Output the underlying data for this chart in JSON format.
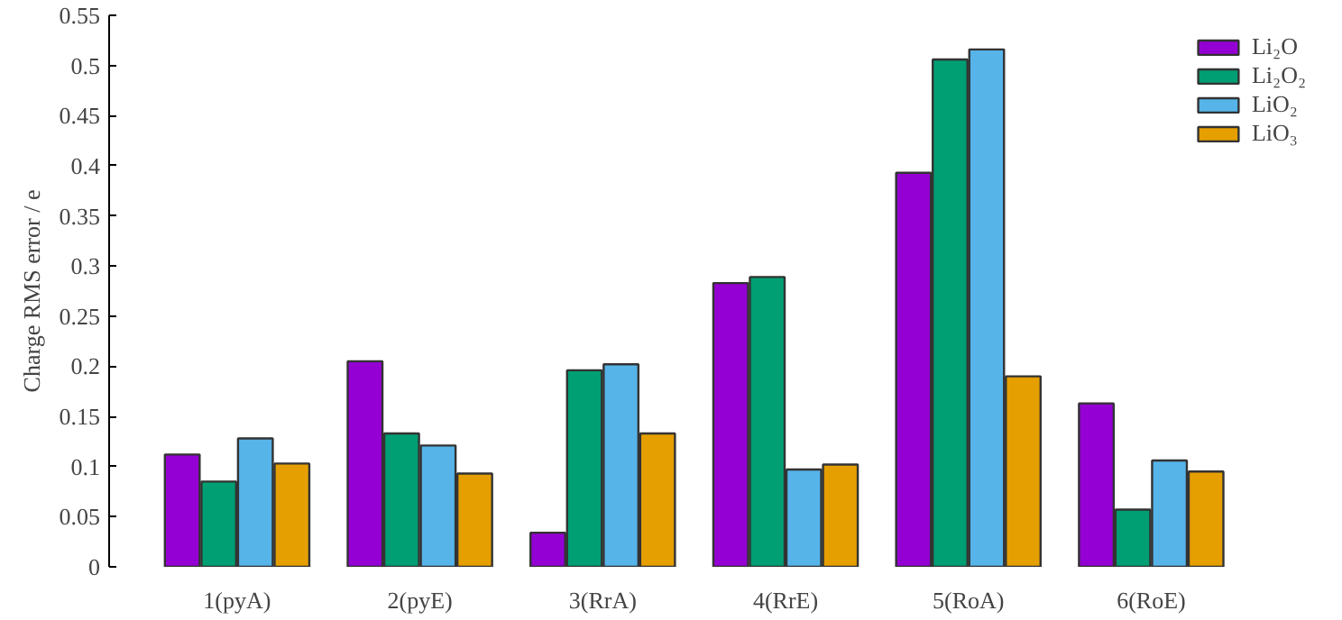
{
  "chart_data": {
    "type": "bar",
    "ylabel": "Charge RMS error / e",
    "categories": [
      "1(pyA)",
      "2(pyE)",
      "3(RrA)",
      "4(RrE)",
      "5(RoA)",
      "6(RoE)"
    ],
    "series": [
      {
        "name": "Li₂O",
        "color": "#9400d3",
        "values": [
          0.112,
          0.205,
          0.034,
          0.283,
          0.393,
          0.163
        ]
      },
      {
        "name": "Li₂O₂",
        "color": "#009e73",
        "values": [
          0.085,
          0.133,
          0.196,
          0.289,
          0.506,
          0.057
        ]
      },
      {
        "name": "LiO₂",
        "color": "#56b4e9",
        "values": [
          0.128,
          0.121,
          0.202,
          0.097,
          0.516,
          0.106
        ]
      },
      {
        "name": "LiO₃",
        "color": "#e69f00",
        "values": [
          0.103,
          0.093,
          0.133,
          0.102,
          0.19,
          0.095
        ]
      }
    ],
    "ylim": [
      0,
      0.55
    ],
    "yticks": [
      0,
      0.05,
      0.1,
      0.15,
      0.2,
      0.25,
      0.3,
      0.35,
      0.4,
      0.45,
      0.5,
      0.55
    ],
    "grid": false,
    "legend": "top right"
  }
}
